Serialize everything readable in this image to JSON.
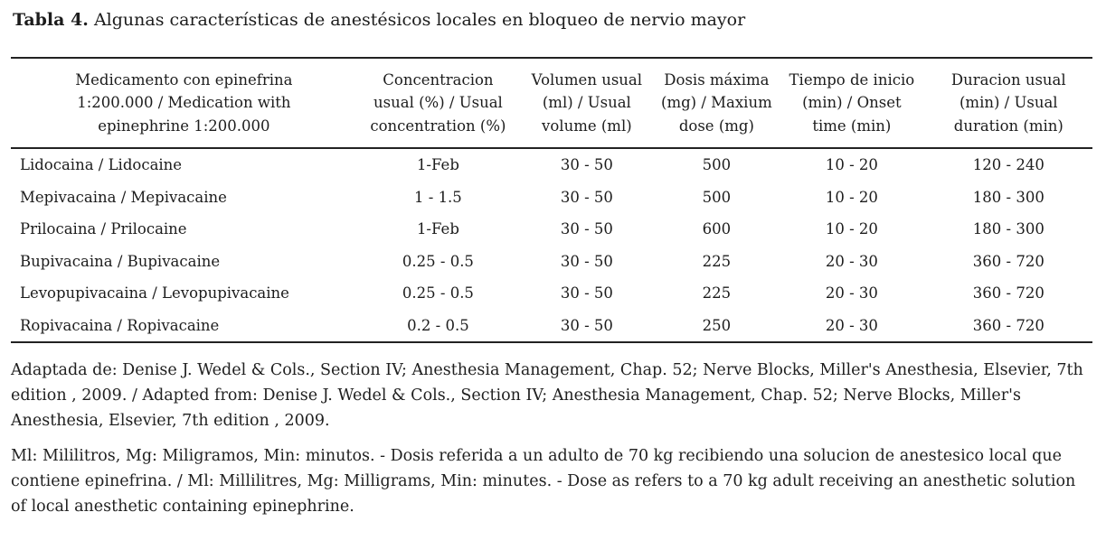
{
  "title": {
    "label": "Tabla 4.",
    "text": " Algunas características de anestésicos locales en bloqueo de nervio mayor"
  },
  "table": {
    "columns": [
      "Medicamento con epinefrina 1:200.000 / Medication with epinephrine 1:200.000",
      "Concentracion usual (%) / Usual concentration (%)",
      "Volumen usual (ml) / Usual volume (ml)",
      "Dosis máxima (mg) / Maxium dose (mg)",
      "Tiempo de inicio (min) / Onset time (min)",
      "Duracion usual (min) / Usual duration (min)"
    ],
    "rows": [
      [
        "Lidocaina / Lidocaine",
        "1-Feb",
        "30 - 50",
        "500",
        "10 - 20",
        "120 - 240"
      ],
      [
        "Mepivacaina / Mepivacaine",
        "1 - 1.5",
        "30 - 50",
        "500",
        "10 - 20",
        "180 - 300"
      ],
      [
        "Prilocaina / Prilocaine",
        "1-Feb",
        "30 - 50",
        "600",
        "10 - 20",
        "180 - 300"
      ],
      [
        "Bupivacaina / Bupivacaine",
        "0.25 - 0.5",
        "30 - 50",
        "225",
        "20 - 30",
        "360 - 720"
      ],
      [
        "Levopupivacaina / Levopupivacaine",
        "0.25 - 0.5",
        "30 - 50",
        "225",
        "20 - 30",
        "360 - 720"
      ],
      [
        "Ropivacaina / Ropivacaine",
        "0.2 - 0.5",
        "30 - 50",
        "250",
        "20 - 30",
        "360 - 720"
      ]
    ]
  },
  "footnotes": [
    "Adaptada de: Denise J. Wedel & Cols., Section IV; Anesthesia Management, Chap. 52; Nerve Blocks, Miller's Anesthesia, Elsevier, 7th edition , 2009. / Adapted from: Denise J. Wedel & Cols., Section IV; Anesthesia Management, Chap. 52; Nerve Blocks, Miller's Anesthesia, Elsevier, 7th edition , 2009.",
    "Ml: Mililitros, Mg: Miligramos, Min: minutos. - Dosis referida a un adulto de 70 kg recibiendo una solucion de anestesico local que contiene epinefrina. / Ml: Millilitres, Mg: Milligrams, Min: minutes. - Dose as refers to a 70 kg adult receiving an anesthetic solution of local anesthetic containing epinephrine."
  ]
}
